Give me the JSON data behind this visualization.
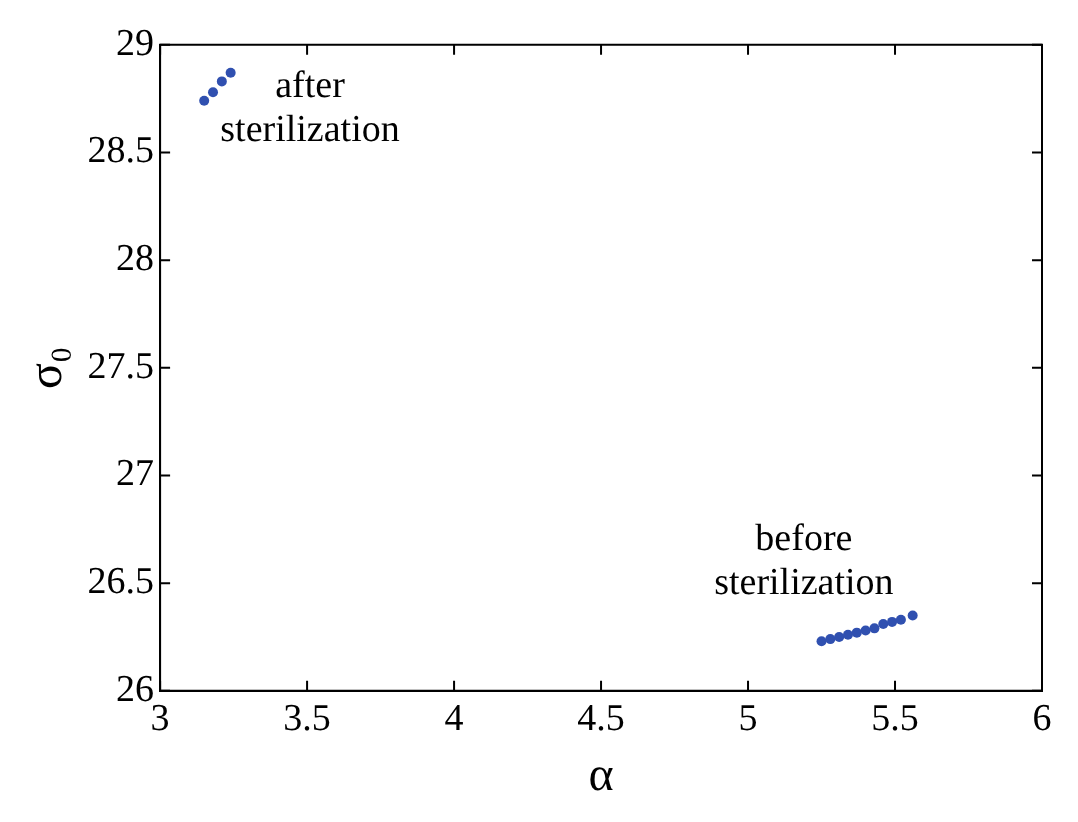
{
  "chart_data": {
    "type": "scatter",
    "xlabel": "α",
    "ylabel": "σ₀",
    "series": [
      {
        "color": "#3050b0",
        "x": [
          3.15,
          3.18,
          3.21,
          3.24
        ],
        "values": [
          28.74,
          28.78,
          28.83,
          28.87
        ]
      },
      {
        "color": "#3050b0",
        "x": [
          5.25,
          5.28,
          5.31,
          5.34,
          5.37,
          5.4,
          5.43,
          5.46,
          5.49,
          5.52,
          5.56
        ],
        "values": [
          26.23,
          26.24,
          26.25,
          26.26,
          26.27,
          26.28,
          26.29,
          26.31,
          26.32,
          26.33,
          26.35
        ]
      }
    ],
    "annotations": [
      "after\nsterilization",
      "before\nsterilization"
    ],
    "xlim": [
      3,
      6
    ],
    "xticks": [
      3,
      3.5,
      4,
      4.5,
      5,
      5.5,
      6
    ],
    "ylim": [
      26,
      29
    ],
    "yticks": [
      26,
      26.5,
      27,
      27.5,
      28,
      28.5,
      29
    ],
    "grid": false,
    "legend": false,
    "marker": "circle"
  }
}
